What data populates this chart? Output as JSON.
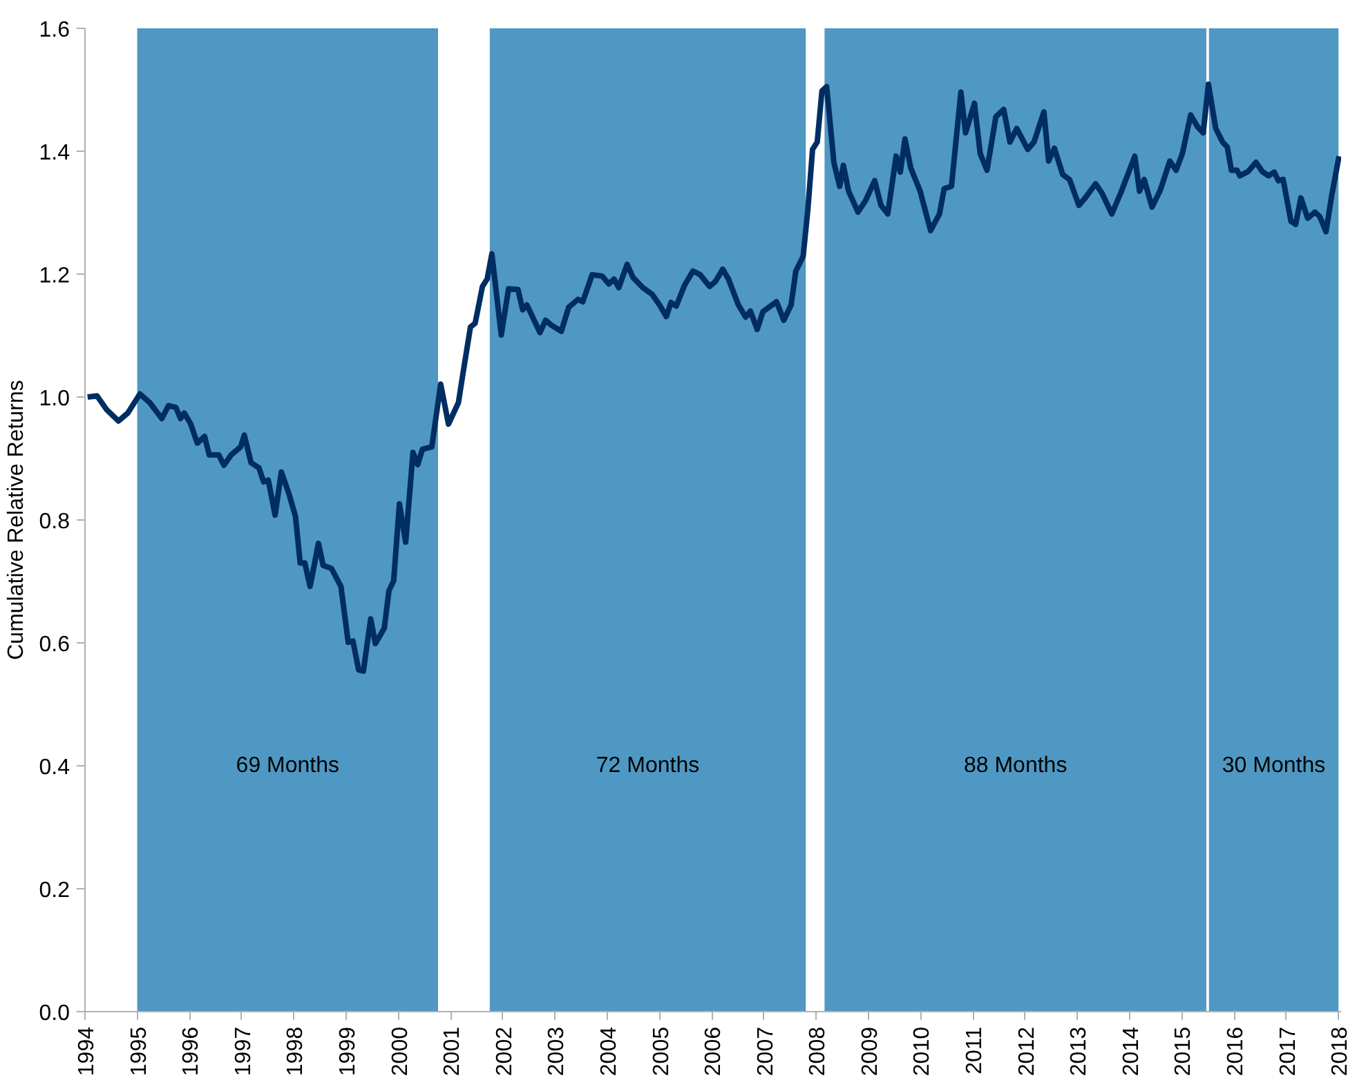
{
  "chart_data": {
    "type": "line",
    "ylabel": "Cumulative Relative Returns",
    "xlim": [
      1994,
      2018.05
    ],
    "xticks": [
      1994,
      1995,
      1996,
      1997,
      1998,
      1999,
      2000,
      2001,
      2002,
      2003,
      2004,
      2005,
      2006,
      2007,
      2008,
      2009,
      2010,
      2011,
      2012,
      2013,
      2014,
      2015,
      2016,
      2017,
      2018
    ],
    "ylim": [
      0,
      1.6
    ],
    "yticks": [
      {
        "value": 0,
        "label": "0.0"
      },
      {
        "value": 0.2,
        "label": "0.2"
      },
      {
        "value": 0.4,
        "label": "0.4"
      },
      {
        "value": 0.6,
        "label": "0.6"
      },
      {
        "value": 0.8,
        "label": "0.8"
      },
      {
        "value": 1.0,
        "label": "1.0"
      },
      {
        "value": 1.2,
        "label": "1.2"
      },
      {
        "value": 1.4,
        "label": "1.4"
      },
      {
        "value": 1.6,
        "label": "1.6"
      }
    ],
    "grid": false,
    "marker": "none",
    "line_style": "solid",
    "bands": [
      {
        "axis": "x",
        "from": 1995.0,
        "to": 2000.76,
        "label": "69 Months",
        "color": "#4f98c3"
      },
      {
        "axis": "x",
        "from": 2001.75,
        "to": 2007.8,
        "label": "72 Months",
        "color": "#4f98c3"
      },
      {
        "axis": "x",
        "from": 2008.16,
        "to": 2015.47,
        "label": "88 Months",
        "color": "#4f98c3"
      },
      {
        "axis": "x",
        "from": 2015.52,
        "to": 2018.0,
        "label": "30 Months",
        "color": "#4f98c3"
      }
    ],
    "series": [
      {
        "color": "#002d62",
        "x": [
          1994.05,
          1994.23,
          1994.41,
          1994.64,
          1994.82,
          1995.05,
          1995.24,
          1995.47,
          1995.6,
          1995.74,
          1995.83,
          1995.9,
          1996.02,
          1996.15,
          1996.29,
          1996.38,
          1996.56,
          1996.66,
          1996.8,
          1996.98,
          1997.05,
          1997.18,
          1997.33,
          1997.42,
          1997.51,
          1997.64,
          1997.76,
          1997.9,
          1998.03,
          1998.12,
          1998.21,
          1998.31,
          1998.47,
          1998.56,
          1998.72,
          1998.9,
          1999.04,
          1999.13,
          1999.24,
          1999.33,
          1999.47,
          1999.56,
          1999.73,
          1999.82,
          1999.91,
          2000.02,
          2000.14,
          2000.28,
          2000.37,
          2000.46,
          2000.64,
          2000.81,
          2000.96,
          2001.15,
          2001.24,
          2001.38,
          2001.47,
          2001.61,
          2001.7,
          2001.79,
          2001.97,
          2002.11,
          2002.29,
          2002.38,
          2002.46,
          2002.71,
          2002.82,
          2002.93,
          2003.12,
          2003.26,
          2003.44,
          2003.53,
          2003.71,
          2003.9,
          2004.03,
          2004.13,
          2004.22,
          2004.38,
          2004.49,
          2004.68,
          2004.86,
          2005.0,
          2005.13,
          2005.22,
          2005.32,
          2005.48,
          2005.64,
          2005.78,
          2005.96,
          2006.07,
          2006.21,
          2006.32,
          2006.51,
          2006.65,
          2006.74,
          2006.87,
          2006.98,
          2007.24,
          2007.38,
          2007.52,
          2007.61,
          2007.75,
          2007.84,
          2007.93,
          2008.02,
          2008.11,
          2008.2,
          2008.34,
          2008.45,
          2008.52,
          2008.62,
          2008.8,
          2008.94,
          2009.12,
          2009.24,
          2009.37,
          2009.53,
          2009.61,
          2009.7,
          2009.81,
          2009.99,
          2010.19,
          2010.36,
          2010.45,
          2010.59,
          2010.77,
          2010.86,
          2011.03,
          2011.14,
          2011.27,
          2011.44,
          2011.59,
          2011.71,
          2011.84,
          2012.05,
          2012.17,
          2012.36,
          2012.45,
          2012.56,
          2012.72,
          2012.85,
          2013.03,
          2013.15,
          2013.35,
          2013.47,
          2013.66,
          2013.84,
          2014.1,
          2014.19,
          2014.28,
          2014.43,
          2014.59,
          2014.77,
          2014.89,
          2015.01,
          2015.17,
          2015.3,
          2015.41,
          2015.51,
          2015.65,
          2015.78,
          2015.87,
          2015.95,
          2016.06,
          2016.11,
          2016.27,
          2016.42,
          2016.54,
          2016.66,
          2016.77,
          2016.85,
          2016.94,
          2017.09,
          2017.18,
          2017.28,
          2017.41,
          2017.55,
          2017.64,
          2017.76,
          2017.87,
          2018.01
        ],
        "values": [
          1.0,
          1.002,
          0.98,
          0.961,
          0.974,
          1.005,
          0.991,
          0.965,
          0.986,
          0.983,
          0.965,
          0.974,
          0.957,
          0.925,
          0.936,
          0.906,
          0.906,
          0.889,
          0.906,
          0.919,
          0.938,
          0.893,
          0.885,
          0.862,
          0.865,
          0.808,
          0.878,
          0.844,
          0.806,
          0.73,
          0.73,
          0.692,
          0.762,
          0.726,
          0.721,
          0.692,
          0.601,
          0.603,
          0.556,
          0.554,
          0.639,
          0.599,
          0.624,
          0.685,
          0.701,
          0.826,
          0.764,
          0.91,
          0.89,
          0.915,
          0.919,
          1.021,
          0.956,
          0.991,
          1.04,
          1.114,
          1.12,
          1.18,
          1.192,
          1.233,
          1.101,
          1.176,
          1.175,
          1.142,
          1.15,
          1.105,
          1.125,
          1.117,
          1.107,
          1.146,
          1.159,
          1.155,
          1.199,
          1.197,
          1.184,
          1.192,
          1.178,
          1.216,
          1.195,
          1.178,
          1.167,
          1.15,
          1.131,
          1.154,
          1.148,
          1.182,
          1.205,
          1.199,
          1.18,
          1.188,
          1.208,
          1.192,
          1.15,
          1.13,
          1.14,
          1.11,
          1.139,
          1.155,
          1.125,
          1.15,
          1.205,
          1.229,
          1.305,
          1.403,
          1.415,
          1.498,
          1.505,
          1.381,
          1.343,
          1.377,
          1.335,
          1.301,
          1.319,
          1.352,
          1.312,
          1.298,
          1.392,
          1.366,
          1.42,
          1.373,
          1.335,
          1.271,
          1.298,
          1.339,
          1.343,
          1.496,
          1.43,
          1.478,
          1.396,
          1.369,
          1.456,
          1.468,
          1.415,
          1.437,
          1.403,
          1.415,
          1.464,
          1.384,
          1.405,
          1.362,
          1.354,
          1.312,
          1.324,
          1.347,
          1.332,
          1.298,
          1.334,
          1.392,
          1.335,
          1.354,
          1.309,
          1.337,
          1.384,
          1.369,
          1.396,
          1.459,
          1.44,
          1.43,
          1.509,
          1.437,
          1.415,
          1.407,
          1.369,
          1.369,
          1.36,
          1.367,
          1.382,
          1.367,
          1.36,
          1.366,
          1.352,
          1.354,
          1.286,
          1.281,
          1.324,
          1.291,
          1.301,
          1.294,
          1.269,
          1.328,
          1.392
        ]
      }
    ]
  }
}
